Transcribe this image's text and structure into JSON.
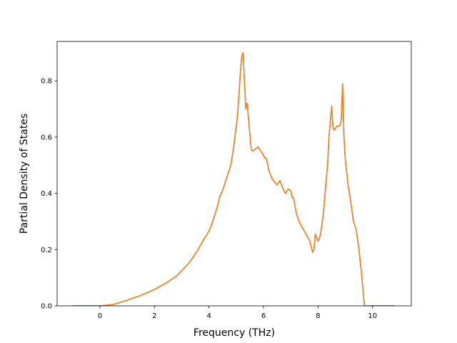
{
  "chart_data": {
    "type": "line",
    "title": "",
    "xlabel": "Frequency (THz)",
    "ylabel": "Partial Density of States",
    "xlim": [
      -1.57,
      11.42
    ],
    "ylim": [
      0.0,
      0.94
    ],
    "xticks": [
      0,
      2,
      4,
      6,
      8,
      10
    ],
    "yticks": [
      0.0,
      0.2,
      0.4,
      0.6,
      0.8
    ],
    "xtick_labels": [
      "0",
      "2",
      "4",
      "6",
      "8",
      "10"
    ],
    "ytick_labels": [
      "0.0",
      "0.2",
      "0.4",
      "0.6",
      "0.8"
    ],
    "grid": false,
    "legend": "none",
    "series": [
      {
        "color": "#1f77b4",
        "x": [
          -1.0,
          0.0,
          0.5,
          1.0,
          1.5,
          2.0,
          2.5,
          2.8,
          3.0,
          3.2,
          3.4,
          3.6,
          3.8,
          3.9,
          4.0,
          4.1,
          4.2,
          4.3,
          4.4,
          4.5,
          4.6,
          4.7,
          4.8,
          4.85,
          4.9,
          4.95,
          5.0,
          5.05,
          5.1,
          5.15,
          5.2,
          5.25,
          5.35,
          5.4,
          5.5,
          5.55,
          5.6,
          5.8,
          6.0,
          6.05,
          6.1,
          6.2,
          6.3,
          6.4,
          6.5,
          6.6,
          6.7,
          6.8,
          6.9,
          7.0,
          7.05,
          7.1,
          7.2,
          7.3,
          7.5,
          7.7,
          7.8,
          7.85,
          7.9,
          8.0,
          8.05,
          8.1,
          8.2,
          8.3,
          8.35,
          8.4,
          8.5,
          8.55,
          8.6,
          8.7,
          8.8,
          8.85,
          8.9,
          8.95,
          9.0,
          9.1,
          9.2,
          9.3,
          9.4,
          9.5,
          9.6,
          9.7,
          9.8,
          9.85,
          10.0,
          10.5,
          10.8
        ],
        "y": [
          0.0,
          0.0,
          0.005,
          0.02,
          0.037,
          0.058,
          0.085,
          0.105,
          0.125,
          0.145,
          0.17,
          0.2,
          0.235,
          0.25,
          0.265,
          0.29,
          0.32,
          0.35,
          0.39,
          0.41,
          0.44,
          0.47,
          0.5,
          0.53,
          0.56,
          0.6,
          0.64,
          0.68,
          0.75,
          0.83,
          0.885,
          0.9,
          0.7,
          0.72,
          0.61,
          0.555,
          0.55,
          0.565,
          0.535,
          0.525,
          0.525,
          0.48,
          0.455,
          0.44,
          0.43,
          0.445,
          0.42,
          0.4,
          0.415,
          0.41,
          0.385,
          0.385,
          0.33,
          0.3,
          0.265,
          0.23,
          0.19,
          0.2,
          0.255,
          0.23,
          0.24,
          0.26,
          0.33,
          0.45,
          0.5,
          0.6,
          0.71,
          0.63,
          0.625,
          0.64,
          0.64,
          0.66,
          0.79,
          0.6,
          0.52,
          0.43,
          0.37,
          0.3,
          0.27,
          0.2,
          0.11,
          0.0,
          0.0,
          0.0,
          0.0,
          0.0,
          0.0
        ]
      },
      {
        "color": "#ff7f0e",
        "x": [
          -1.0,
          0.0,
          0.5,
          1.0,
          1.5,
          2.0,
          2.5,
          2.8,
          3.0,
          3.2,
          3.4,
          3.6,
          3.8,
          3.9,
          4.0,
          4.1,
          4.2,
          4.3,
          4.4,
          4.5,
          4.6,
          4.7,
          4.8,
          4.85,
          4.9,
          4.95,
          5.0,
          5.05,
          5.1,
          5.15,
          5.2,
          5.25,
          5.35,
          5.4,
          5.5,
          5.55,
          5.6,
          5.8,
          6.0,
          6.05,
          6.1,
          6.2,
          6.3,
          6.4,
          6.5,
          6.6,
          6.7,
          6.8,
          6.9,
          7.0,
          7.05,
          7.1,
          7.2,
          7.3,
          7.5,
          7.7,
          7.8,
          7.85,
          7.9,
          8.0,
          8.05,
          8.1,
          8.2,
          8.3,
          8.35,
          8.4,
          8.5,
          8.55,
          8.6,
          8.7,
          8.8,
          8.85,
          8.9,
          8.95,
          9.0,
          9.1,
          9.2,
          9.3,
          9.4,
          9.5,
          9.6,
          9.7,
          9.8,
          9.85,
          10.0,
          10.5,
          10.8
        ],
        "y": [
          0.0,
          0.0,
          0.005,
          0.02,
          0.037,
          0.058,
          0.085,
          0.105,
          0.125,
          0.145,
          0.17,
          0.2,
          0.235,
          0.25,
          0.265,
          0.29,
          0.32,
          0.35,
          0.39,
          0.41,
          0.44,
          0.47,
          0.5,
          0.53,
          0.56,
          0.6,
          0.64,
          0.68,
          0.75,
          0.83,
          0.885,
          0.9,
          0.7,
          0.72,
          0.61,
          0.555,
          0.55,
          0.565,
          0.535,
          0.525,
          0.525,
          0.48,
          0.455,
          0.44,
          0.43,
          0.445,
          0.42,
          0.4,
          0.415,
          0.41,
          0.385,
          0.385,
          0.33,
          0.3,
          0.265,
          0.23,
          0.19,
          0.2,
          0.255,
          0.23,
          0.24,
          0.26,
          0.33,
          0.45,
          0.5,
          0.6,
          0.71,
          0.63,
          0.625,
          0.64,
          0.64,
          0.66,
          0.79,
          0.6,
          0.52,
          0.43,
          0.37,
          0.3,
          0.27,
          0.2,
          0.11,
          0.0,
          0.0,
          0.0,
          0.0,
          0.0,
          0.0
        ]
      }
    ]
  }
}
